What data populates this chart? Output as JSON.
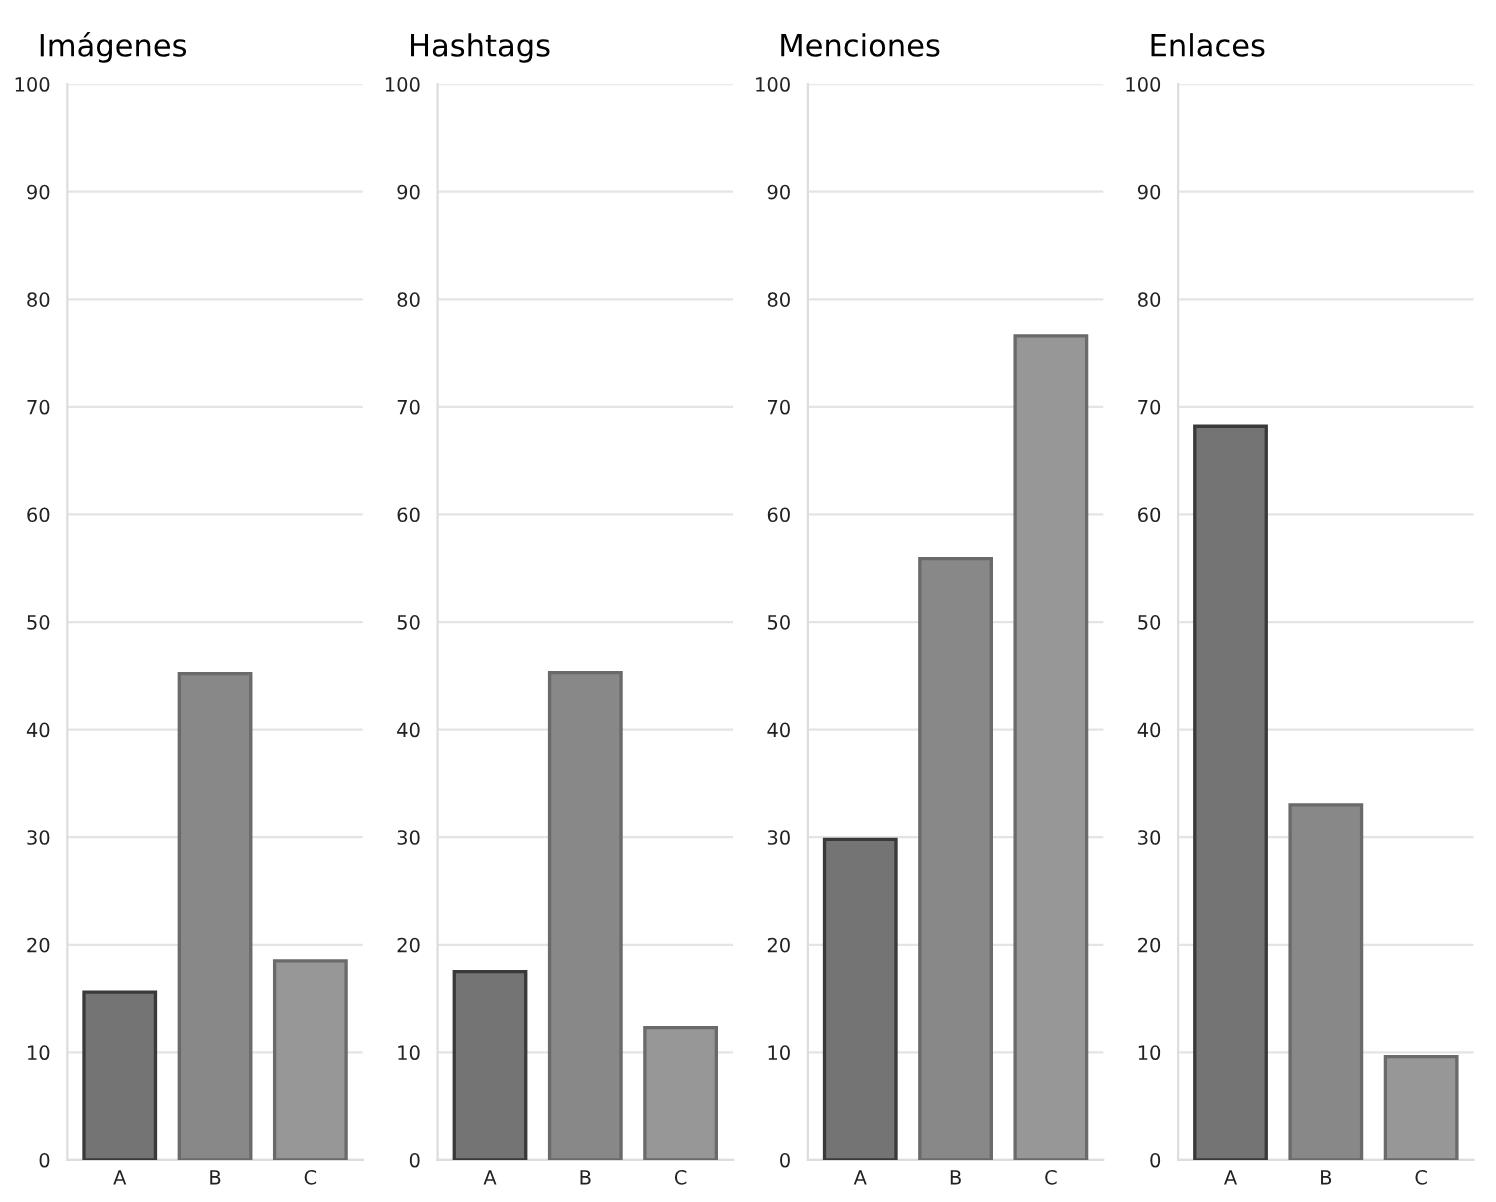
{
  "chart_data": [
    {
      "type": "bar",
      "title": "Imágenes",
      "categories": [
        "A",
        "B",
        "C"
      ],
      "values": [
        15.6,
        45.2,
        18.5
      ],
      "colors": [
        "#747474",
        "#888888",
        "#979797"
      ],
      "ylim": [
        0,
        100
      ],
      "yticks": [
        0,
        10,
        20,
        30,
        40,
        50,
        60,
        70,
        80,
        90,
        100
      ],
      "grid": "y"
    },
    {
      "type": "bar",
      "title": "Hashtags",
      "categories": [
        "A",
        "B",
        "C"
      ],
      "values": [
        17.5,
        45.3,
        12.3
      ],
      "colors": [
        "#747474",
        "#888888",
        "#979797"
      ],
      "ylim": [
        0,
        100
      ],
      "yticks": [
        0,
        10,
        20,
        30,
        40,
        50,
        60,
        70,
        80,
        90,
        100
      ],
      "grid": "y"
    },
    {
      "type": "bar",
      "title": "Menciones",
      "categories": [
        "A",
        "B",
        "C"
      ],
      "values": [
        29.8,
        55.9,
        76.6
      ],
      "colors": [
        "#747474",
        "#888888",
        "#979797"
      ],
      "ylim": [
        0,
        100
      ],
      "yticks": [
        0,
        10,
        20,
        30,
        40,
        50,
        60,
        70,
        80,
        90,
        100
      ],
      "grid": "y"
    },
    {
      "type": "bar",
      "title": "Enlaces",
      "categories": [
        "A",
        "B",
        "C"
      ],
      "values": [
        68.2,
        33.0,
        9.6
      ],
      "colors": [
        "#747474",
        "#888888",
        "#979797"
      ],
      "ylim": [
        0,
        100
      ],
      "yticks": [
        0,
        10,
        20,
        30,
        40,
        50,
        60,
        70,
        80,
        90,
        100
      ],
      "grid": "y"
    }
  ]
}
